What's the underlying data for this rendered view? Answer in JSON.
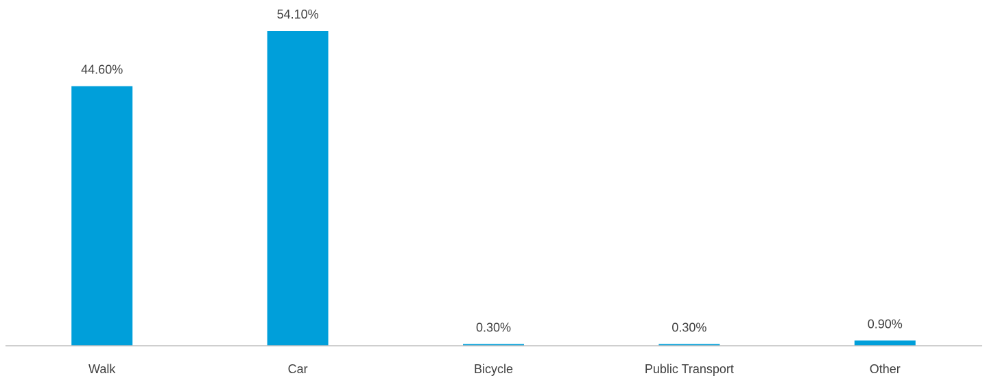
{
  "chart_data": {
    "type": "bar",
    "title": "",
    "xlabel": "",
    "ylabel": "",
    "categories": [
      "Walk",
      "Car",
      "Bicycle",
      "Public Transport",
      "Other"
    ],
    "values": [
      44.6,
      54.1,
      0.3,
      0.3,
      0.9
    ],
    "data_labels": [
      "44.60%",
      "54.10%",
      "0.30%",
      "0.30%",
      "0.90%"
    ],
    "ylim": [
      0,
      54.1
    ],
    "grid": false,
    "legend": "none",
    "bar_color": "#009FDA",
    "axis_color": "#BFBFBF",
    "text_color": "#404040"
  }
}
